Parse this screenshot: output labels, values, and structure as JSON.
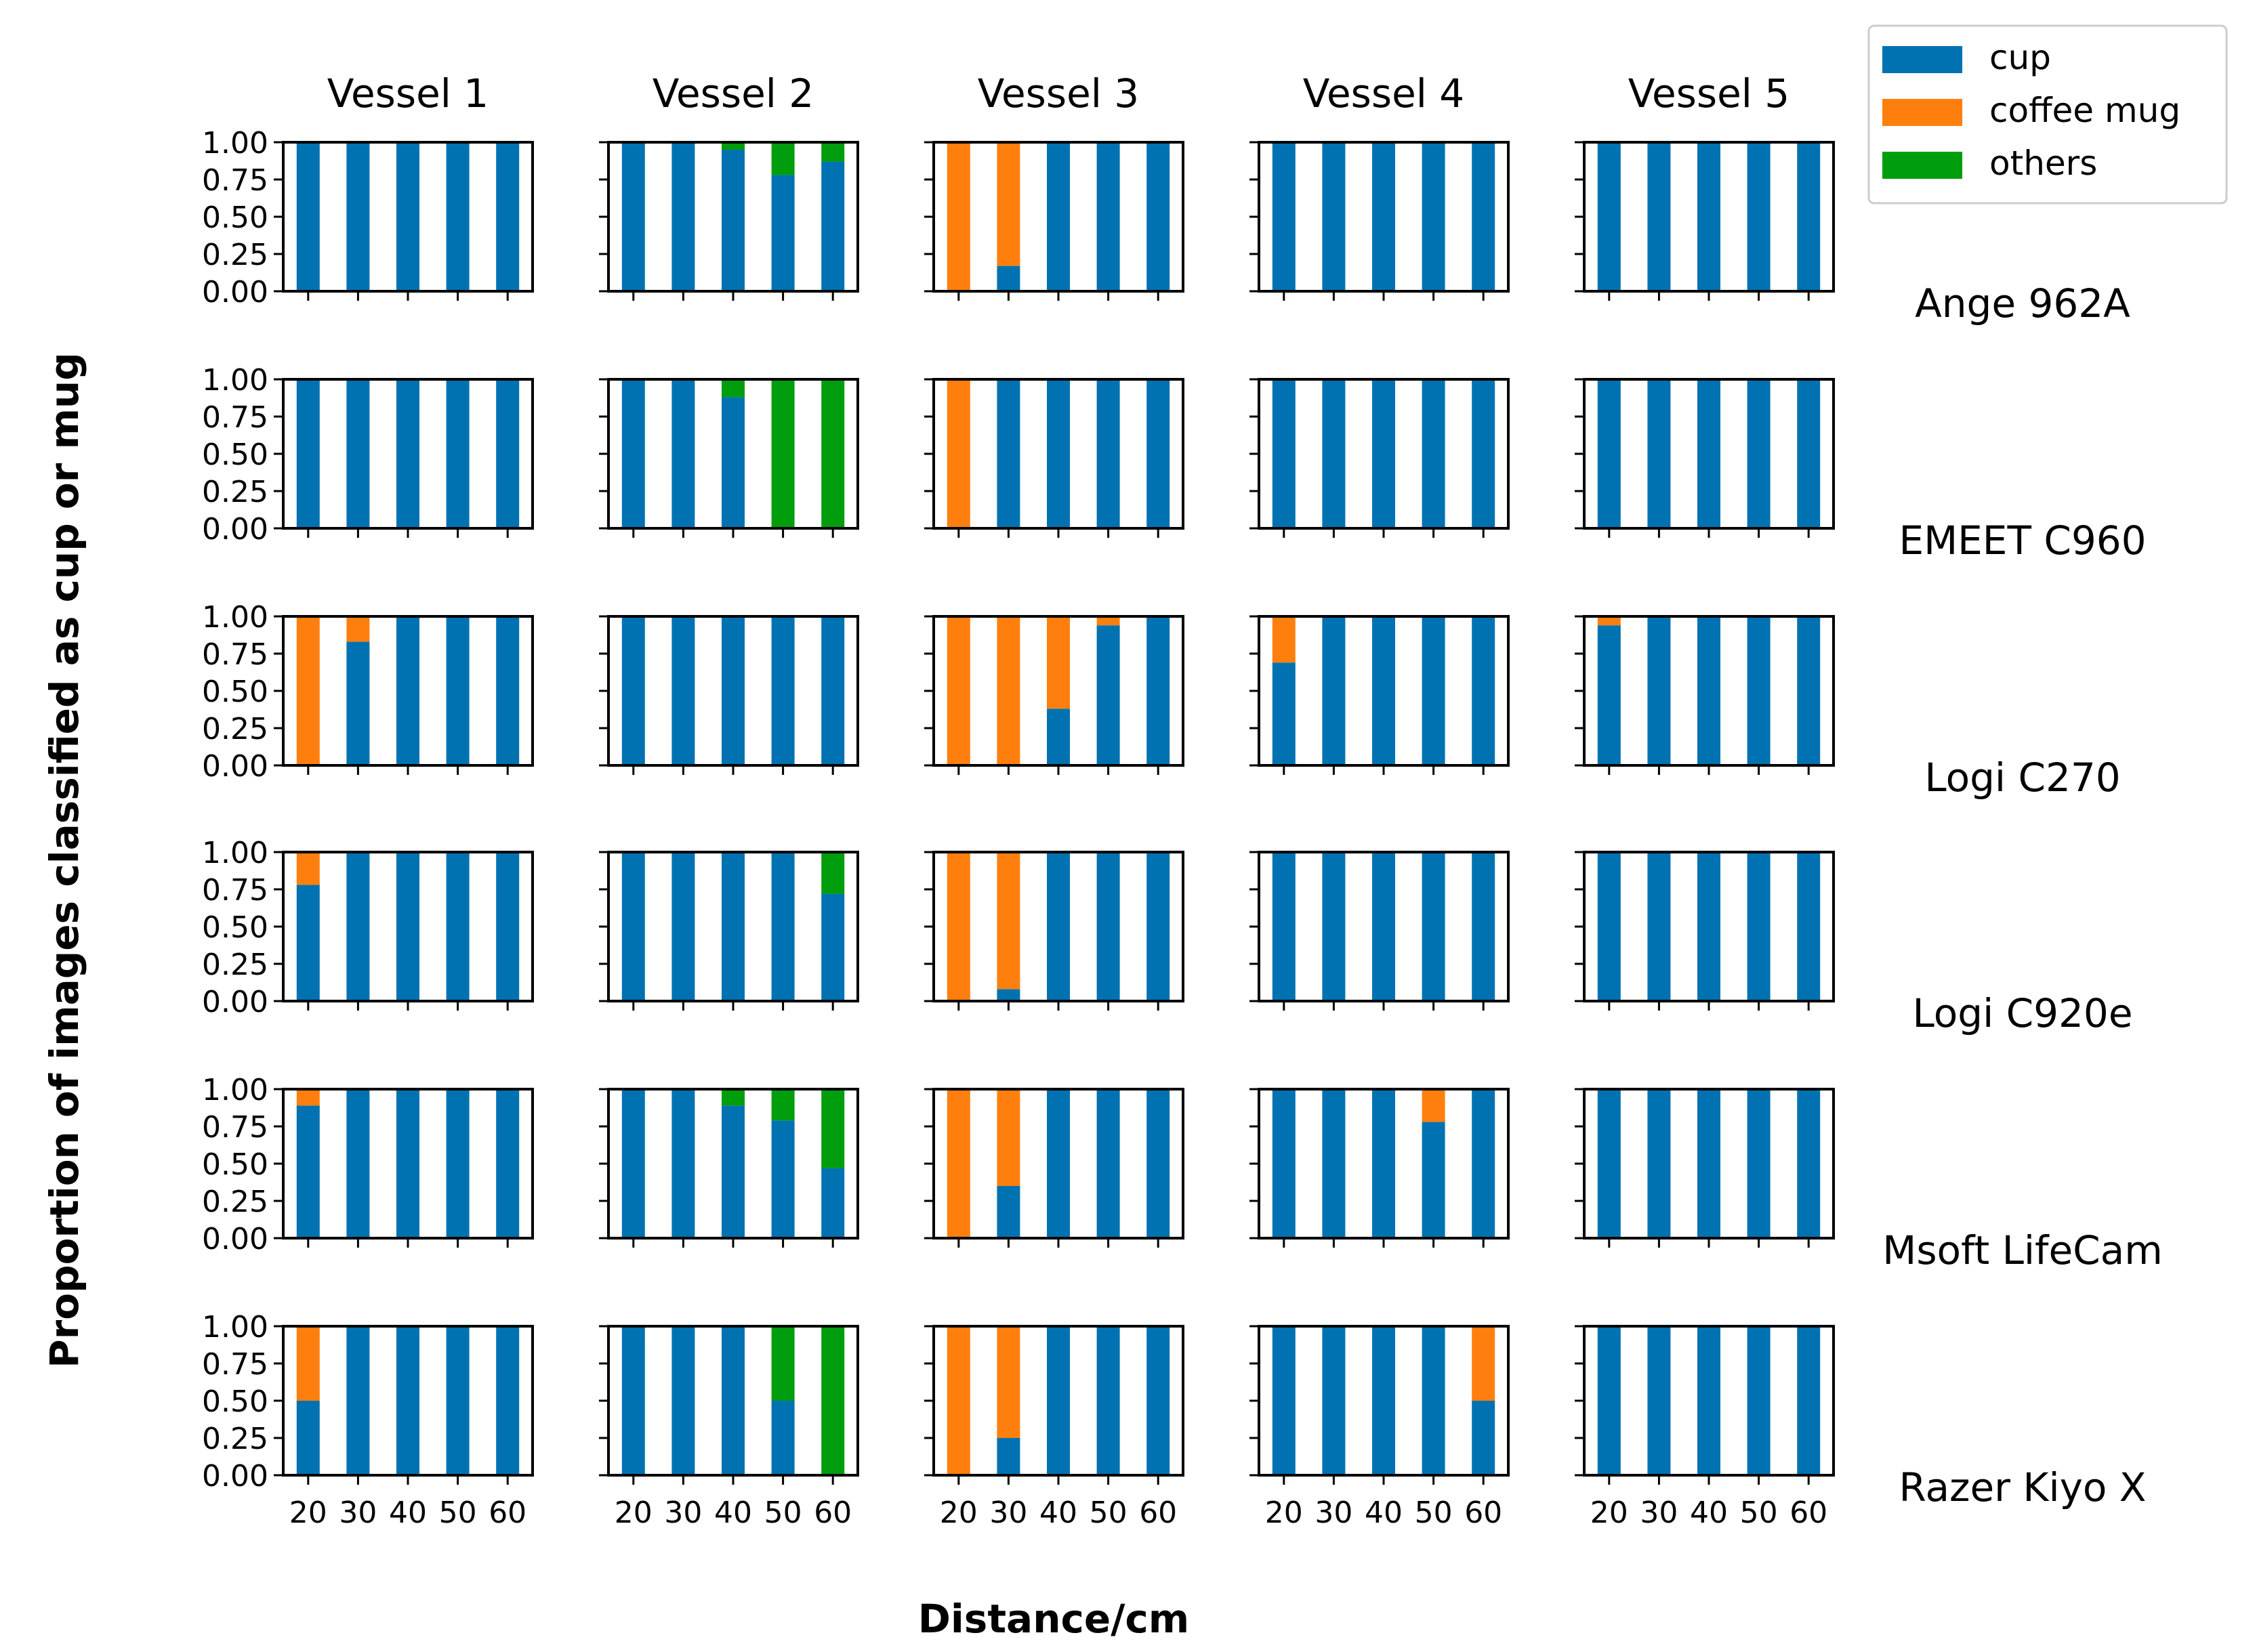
{
  "chart_data": {
    "type": "bar",
    "stacked": true,
    "xlabel": "Distance/cm",
    "ylabel": "Proportion of images classified as cup or mug",
    "ylim": [
      0,
      1
    ],
    "yticks": [
      "0.00",
      "0.25",
      "0.50",
      "0.75",
      "1.00"
    ],
    "categories": [
      "20",
      "30",
      "40",
      "50",
      "60"
    ],
    "column_titles": [
      "Vessel 1",
      "Vessel 2",
      "Vessel 3",
      "Vessel 4",
      "Vessel 5"
    ],
    "row_labels": [
      "Ange 962A",
      "EMEET C960",
      "Logi C270",
      "Logi C920e",
      "Msoft LifeCam",
      "Razer Kiyo X"
    ],
    "legend": {
      "position": "top-right",
      "entries": [
        {
          "name": "cup",
          "color": "#0072B2"
        },
        {
          "name": "coffee mug",
          "color": "#FF7F0E"
        },
        {
          "name": "others",
          "color": "#009E0C"
        }
      ]
    },
    "panels": [
      [
        {
          "cup": [
            1,
            1,
            1,
            1,
            1
          ],
          "coffee_mug": [
            0,
            0,
            0,
            0,
            0
          ],
          "others": [
            0,
            0,
            0,
            0,
            0
          ]
        },
        {
          "cup": [
            1,
            1,
            0.95,
            0.78,
            0.87
          ],
          "coffee_mug": [
            0,
            0,
            0,
            0,
            0
          ],
          "others": [
            0,
            0,
            0.05,
            0.22,
            0.13
          ]
        },
        {
          "cup": [
            0,
            0.17,
            1,
            1,
            1
          ],
          "coffee_mug": [
            1,
            0.83,
            0,
            0,
            0
          ],
          "others": [
            0,
            0,
            0,
            0,
            0
          ]
        },
        {
          "cup": [
            1,
            1,
            1,
            1,
            1
          ],
          "coffee_mug": [
            0,
            0,
            0,
            0,
            0
          ],
          "others": [
            0,
            0,
            0,
            0,
            0
          ]
        },
        {
          "cup": [
            1,
            1,
            1,
            1,
            1
          ],
          "coffee_mug": [
            0,
            0,
            0,
            0,
            0
          ],
          "others": [
            0,
            0,
            0,
            0,
            0
          ]
        }
      ],
      [
        {
          "cup": [
            1,
            1,
            1,
            1,
            1
          ],
          "coffee_mug": [
            0,
            0,
            0,
            0,
            0
          ],
          "others": [
            0,
            0,
            0,
            0,
            0
          ]
        },
        {
          "cup": [
            1,
            1,
            0.88,
            0,
            0
          ],
          "coffee_mug": [
            0,
            0,
            0,
            0,
            0
          ],
          "others": [
            0,
            0,
            0.12,
            1,
            1
          ]
        },
        {
          "cup": [
            0,
            1,
            1,
            1,
            1
          ],
          "coffee_mug": [
            1,
            0,
            0,
            0,
            0
          ],
          "others": [
            0,
            0,
            0,
            0,
            0
          ]
        },
        {
          "cup": [
            1,
            1,
            1,
            1,
            1
          ],
          "coffee_mug": [
            0,
            0,
            0,
            0,
            0
          ],
          "others": [
            0,
            0,
            0,
            0,
            0
          ]
        },
        {
          "cup": [
            1,
            1,
            1,
            1,
            1
          ],
          "coffee_mug": [
            0,
            0,
            0,
            0,
            0
          ],
          "others": [
            0,
            0,
            0,
            0,
            0
          ]
        }
      ],
      [
        {
          "cup": [
            0,
            0.83,
            1,
            1,
            1
          ],
          "coffee_mug": [
            1,
            0.17,
            0,
            0,
            0
          ],
          "others": [
            0,
            0,
            0,
            0,
            0
          ]
        },
        {
          "cup": [
            1,
            1,
            1,
            1,
            1
          ],
          "coffee_mug": [
            0,
            0,
            0,
            0,
            0
          ],
          "others": [
            0,
            0,
            0,
            0,
            0
          ]
        },
        {
          "cup": [
            0,
            0,
            0.38,
            0.94,
            1
          ],
          "coffee_mug": [
            1,
            1,
            0.62,
            0.06,
            0
          ],
          "others": [
            0,
            0,
            0,
            0,
            0
          ]
        },
        {
          "cup": [
            0.69,
            1,
            1,
            1,
            1
          ],
          "coffee_mug": [
            0.31,
            0,
            0,
            0,
            0
          ],
          "others": [
            0,
            0,
            0,
            0,
            0
          ]
        },
        {
          "cup": [
            0.94,
            1,
            1,
            1,
            1
          ],
          "coffee_mug": [
            0.06,
            0,
            0,
            0,
            0
          ],
          "others": [
            0,
            0,
            0,
            0,
            0
          ]
        }
      ],
      [
        {
          "cup": [
            0.78,
            1,
            1,
            1,
            1
          ],
          "coffee_mug": [
            0.22,
            0,
            0,
            0,
            0
          ],
          "others": [
            0,
            0,
            0,
            0,
            0
          ]
        },
        {
          "cup": [
            1,
            1,
            1,
            1,
            0.72
          ],
          "coffee_mug": [
            0,
            0,
            0,
            0,
            0
          ],
          "others": [
            0,
            0,
            0,
            0,
            0.28
          ]
        },
        {
          "cup": [
            0,
            0.08,
            1,
            1,
            1
          ],
          "coffee_mug": [
            1,
            0.92,
            0,
            0,
            0
          ],
          "others": [
            0,
            0,
            0,
            0,
            0
          ]
        },
        {
          "cup": [
            1,
            1,
            1,
            1,
            1
          ],
          "coffee_mug": [
            0,
            0,
            0,
            0,
            0
          ],
          "others": [
            0,
            0,
            0,
            0,
            0
          ]
        },
        {
          "cup": [
            1,
            1,
            1,
            1,
            1
          ],
          "coffee_mug": [
            0,
            0,
            0,
            0,
            0
          ],
          "others": [
            0,
            0,
            0,
            0,
            0
          ]
        }
      ],
      [
        {
          "cup": [
            0.89,
            1,
            1,
            1,
            1
          ],
          "coffee_mug": [
            0.11,
            0,
            0,
            0,
            0
          ],
          "others": [
            0,
            0,
            0,
            0,
            0
          ]
        },
        {
          "cup": [
            1,
            1,
            0.89,
            0.79,
            0.47
          ],
          "coffee_mug": [
            0,
            0,
            0,
            0,
            0
          ],
          "others": [
            0,
            0,
            0.11,
            0.21,
            0.53
          ]
        },
        {
          "cup": [
            0,
            0.35,
            1,
            1,
            1
          ],
          "coffee_mug": [
            1,
            0.65,
            0,
            0,
            0
          ],
          "others": [
            0,
            0,
            0,
            0,
            0
          ]
        },
        {
          "cup": [
            1,
            1,
            1,
            0.78,
            1
          ],
          "coffee_mug": [
            0,
            0,
            0,
            0.22,
            0
          ],
          "others": [
            0,
            0,
            0,
            0,
            0
          ]
        },
        {
          "cup": [
            1,
            1,
            1,
            1,
            1
          ],
          "coffee_mug": [
            0,
            0,
            0,
            0,
            0
          ],
          "others": [
            0,
            0,
            0,
            0,
            0
          ]
        }
      ],
      [
        {
          "cup": [
            0.5,
            1,
            1,
            1,
            1
          ],
          "coffee_mug": [
            0.5,
            0,
            0,
            0,
            0
          ],
          "others": [
            0,
            0,
            0,
            0,
            0
          ]
        },
        {
          "cup": [
            1,
            1,
            1,
            0.5,
            0
          ],
          "coffee_mug": [
            0,
            0,
            0,
            0,
            0
          ],
          "others": [
            0,
            0,
            0,
            0.5,
            1
          ]
        },
        {
          "cup": [
            0,
            0.25,
            1,
            1,
            1
          ],
          "coffee_mug": [
            1,
            0.75,
            0,
            0,
            0
          ],
          "others": [
            0,
            0,
            0,
            0,
            0
          ]
        },
        {
          "cup": [
            1,
            1,
            1,
            1,
            0.5
          ],
          "coffee_mug": [
            0,
            0,
            0,
            0,
            0.5
          ],
          "others": [
            0,
            0,
            0,
            0,
            0
          ]
        },
        {
          "cup": [
            1,
            1,
            1,
            1,
            1
          ],
          "coffee_mug": [
            0,
            0,
            0,
            0,
            0
          ],
          "others": [
            0,
            0,
            0,
            0,
            0
          ]
        }
      ]
    ]
  }
}
